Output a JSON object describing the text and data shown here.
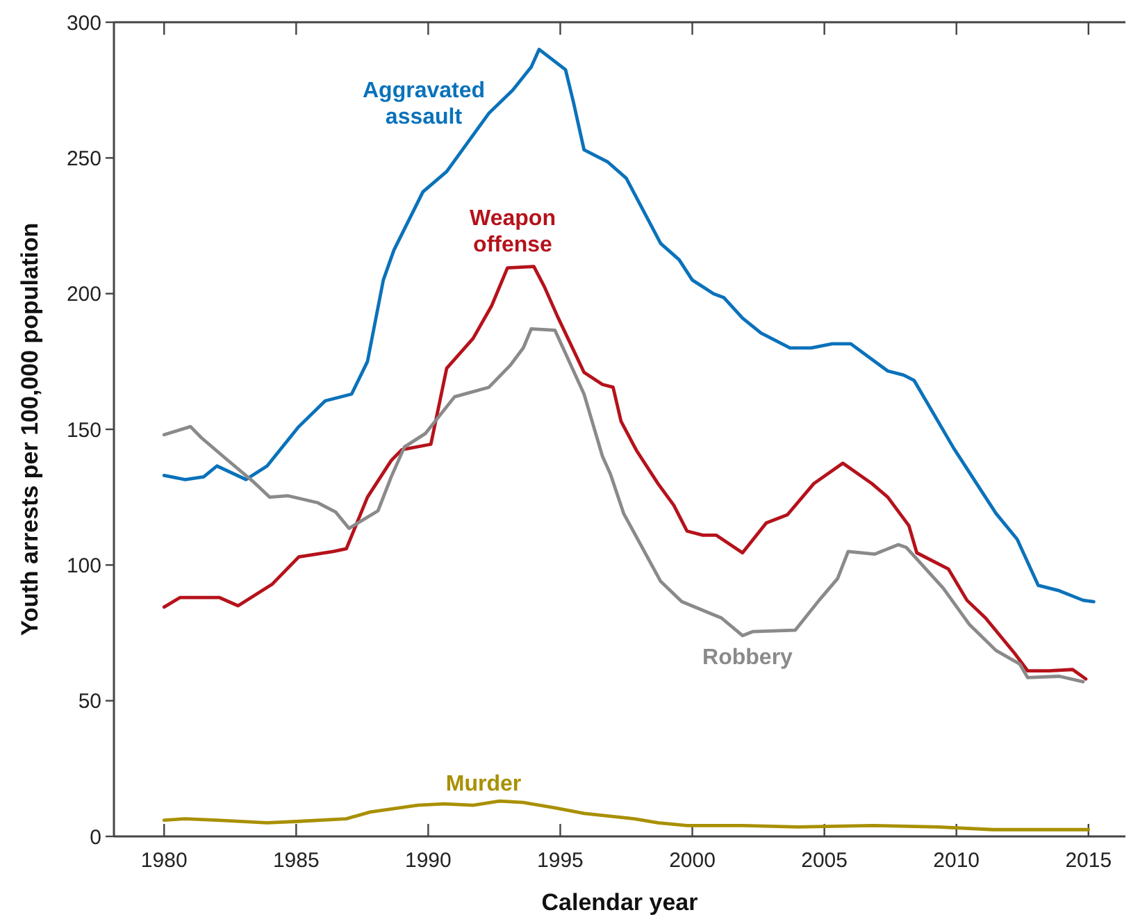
{
  "chart_data": {
    "type": "line",
    "xlabel": "Calendar year",
    "ylabel": "Youth arrests per 100,000 population",
    "xlim": [
      1978.1,
      2016.4
    ],
    "ylim": [
      0,
      300
    ],
    "xticks": [
      1980,
      1985,
      1990,
      1995,
      2000,
      2005,
      2010,
      2015
    ],
    "yticks": [
      0,
      50,
      100,
      150,
      200,
      250,
      300
    ],
    "grid": false,
    "marker": "none",
    "line_style": "solid",
    "series": [
      {
        "name": "Aggravated assault",
        "color": "#0a72ba",
        "x": [
          1980,
          1980.8,
          1981.5,
          1982,
          1983.1,
          1983.9,
          1985.1,
          1986.1,
          1987.1,
          1987.7,
          1988.3,
          1988.7,
          1989.8,
          1990.7,
          1992.3,
          1993.2,
          1993.9,
          1994.2,
          1995.2,
          1995.5,
          1995.9,
          1996.8,
          1997.5,
          1998.8,
          1999.5,
          2000,
          2000.8,
          2001.2,
          2001.9,
          2002.6,
          2003.7,
          2004.5,
          2005.3,
          2006,
          2007.4,
          2008,
          2008.4,
          2009,
          2009.9,
          2011.5,
          2012.3,
          2013.1,
          2013.9,
          2014.8,
          2015.2
        ],
        "values": [
          133,
          131.5,
          132.5,
          136.5,
          131.5,
          136.5,
          151,
          160.5,
          163,
          175,
          205,
          216,
          237.5,
          245,
          266.5,
          275,
          283.5,
          290,
          282.5,
          270.5,
          253,
          248.5,
          242.5,
          218.5,
          212.5,
          205,
          200,
          198.5,
          191,
          185.5,
          180,
          180,
          181.5,
          181.5,
          171.5,
          170,
          168,
          158,
          143,
          119,
          109.5,
          92.5,
          90.5,
          87,
          86.5
        ]
      },
      {
        "name": "Weapon offense",
        "color": "#b5121b",
        "x": [
          1980,
          1980.6,
          1982.1,
          1982.8,
          1984.1,
          1985.1,
          1986.4,
          1986.9,
          1987.7,
          1988.6,
          1989,
          1990.1,
          1990.7,
          1991.7,
          1992.4,
          1993,
          1994,
          1994.4,
          1994.9,
          1995.9,
          1996.6,
          1997,
          1997.3,
          1997.9,
          1998.7,
          1999.3,
          1999.8,
          2000.4,
          2000.9,
          2001.9,
          2002.8,
          2003.6,
          2004.6,
          2005.7,
          2006.8,
          2007.4,
          2008.2,
          2008.5,
          2009.7,
          2010.4,
          2011.1,
          2012.2,
          2012.7,
          2013.5,
          2014.4,
          2014.9
        ],
        "values": [
          84.5,
          88,
          88,
          85,
          93,
          103,
          105,
          106,
          125,
          138.5,
          142.5,
          144.5,
          172.5,
          183.5,
          195.5,
          209.5,
          210,
          202.5,
          191.5,
          171,
          166.5,
          165.5,
          153,
          142,
          130,
          122,
          112.5,
          111,
          111,
          104.5,
          115.5,
          118.5,
          130,
          137.5,
          130,
          125,
          114.5,
          104.5,
          98.5,
          87,
          80.5,
          67.5,
          61,
          61,
          61.5,
          58
        ]
      },
      {
        "name": "Robbery",
        "color": "#8a8a8a",
        "x": [
          1980,
          1981,
          1981.4,
          1982.3,
          1983.4,
          1984,
          1984.7,
          1985.8,
          1986.5,
          1987,
          1988.1,
          1988.6,
          1989.1,
          1989.9,
          1991,
          1992.3,
          1993.1,
          1993.6,
          1993.9,
          1994.8,
          1995.9,
          1996.6,
          1996.9,
          1997.4,
          1998.8,
          1999.6,
          2001.1,
          2001.9,
          2002.3,
          2003.9,
          2004.8,
          2005.5,
          2005.9,
          2006.9,
          2007.8,
          2008.1,
          2009.5,
          2010.5,
          2011.5,
          2012.4,
          2012.7,
          2013.9,
          2014.8
        ],
        "values": [
          148,
          151,
          147,
          139.5,
          130.5,
          125,
          125.5,
          123,
          119.5,
          113.5,
          120,
          132.5,
          143.5,
          148.5,
          162,
          165.5,
          173.5,
          180,
          187,
          186.5,
          163,
          140,
          133.5,
          119,
          94,
          86.5,
          80.5,
          74,
          75.5,
          76,
          87,
          95,
          105,
          104,
          107.5,
          106.5,
          91.5,
          78,
          68.5,
          63.5,
          58.5,
          59,
          57
        ]
      },
      {
        "name": "Murder",
        "color": "#a89000",
        "x": [
          1980,
          1980.8,
          1982,
          1983.9,
          1985,
          1986.9,
          1987.8,
          1989.6,
          1990.6,
          1991.7,
          1992.7,
          1993.6,
          1994.8,
          1995.9,
          1997.8,
          1998.7,
          1999.8,
          2001.9,
          2004,
          2006.8,
          2009.3,
          2011.4,
          2015
        ],
        "values": [
          6,
          6.5,
          6,
          5,
          5.5,
          6.5,
          9,
          11.5,
          12,
          11.5,
          13,
          12.5,
          10.5,
          8.5,
          6.5,
          5,
          4,
          4,
          3.5,
          4,
          3.5,
          2.5,
          2.5
        ]
      }
    ]
  }
}
